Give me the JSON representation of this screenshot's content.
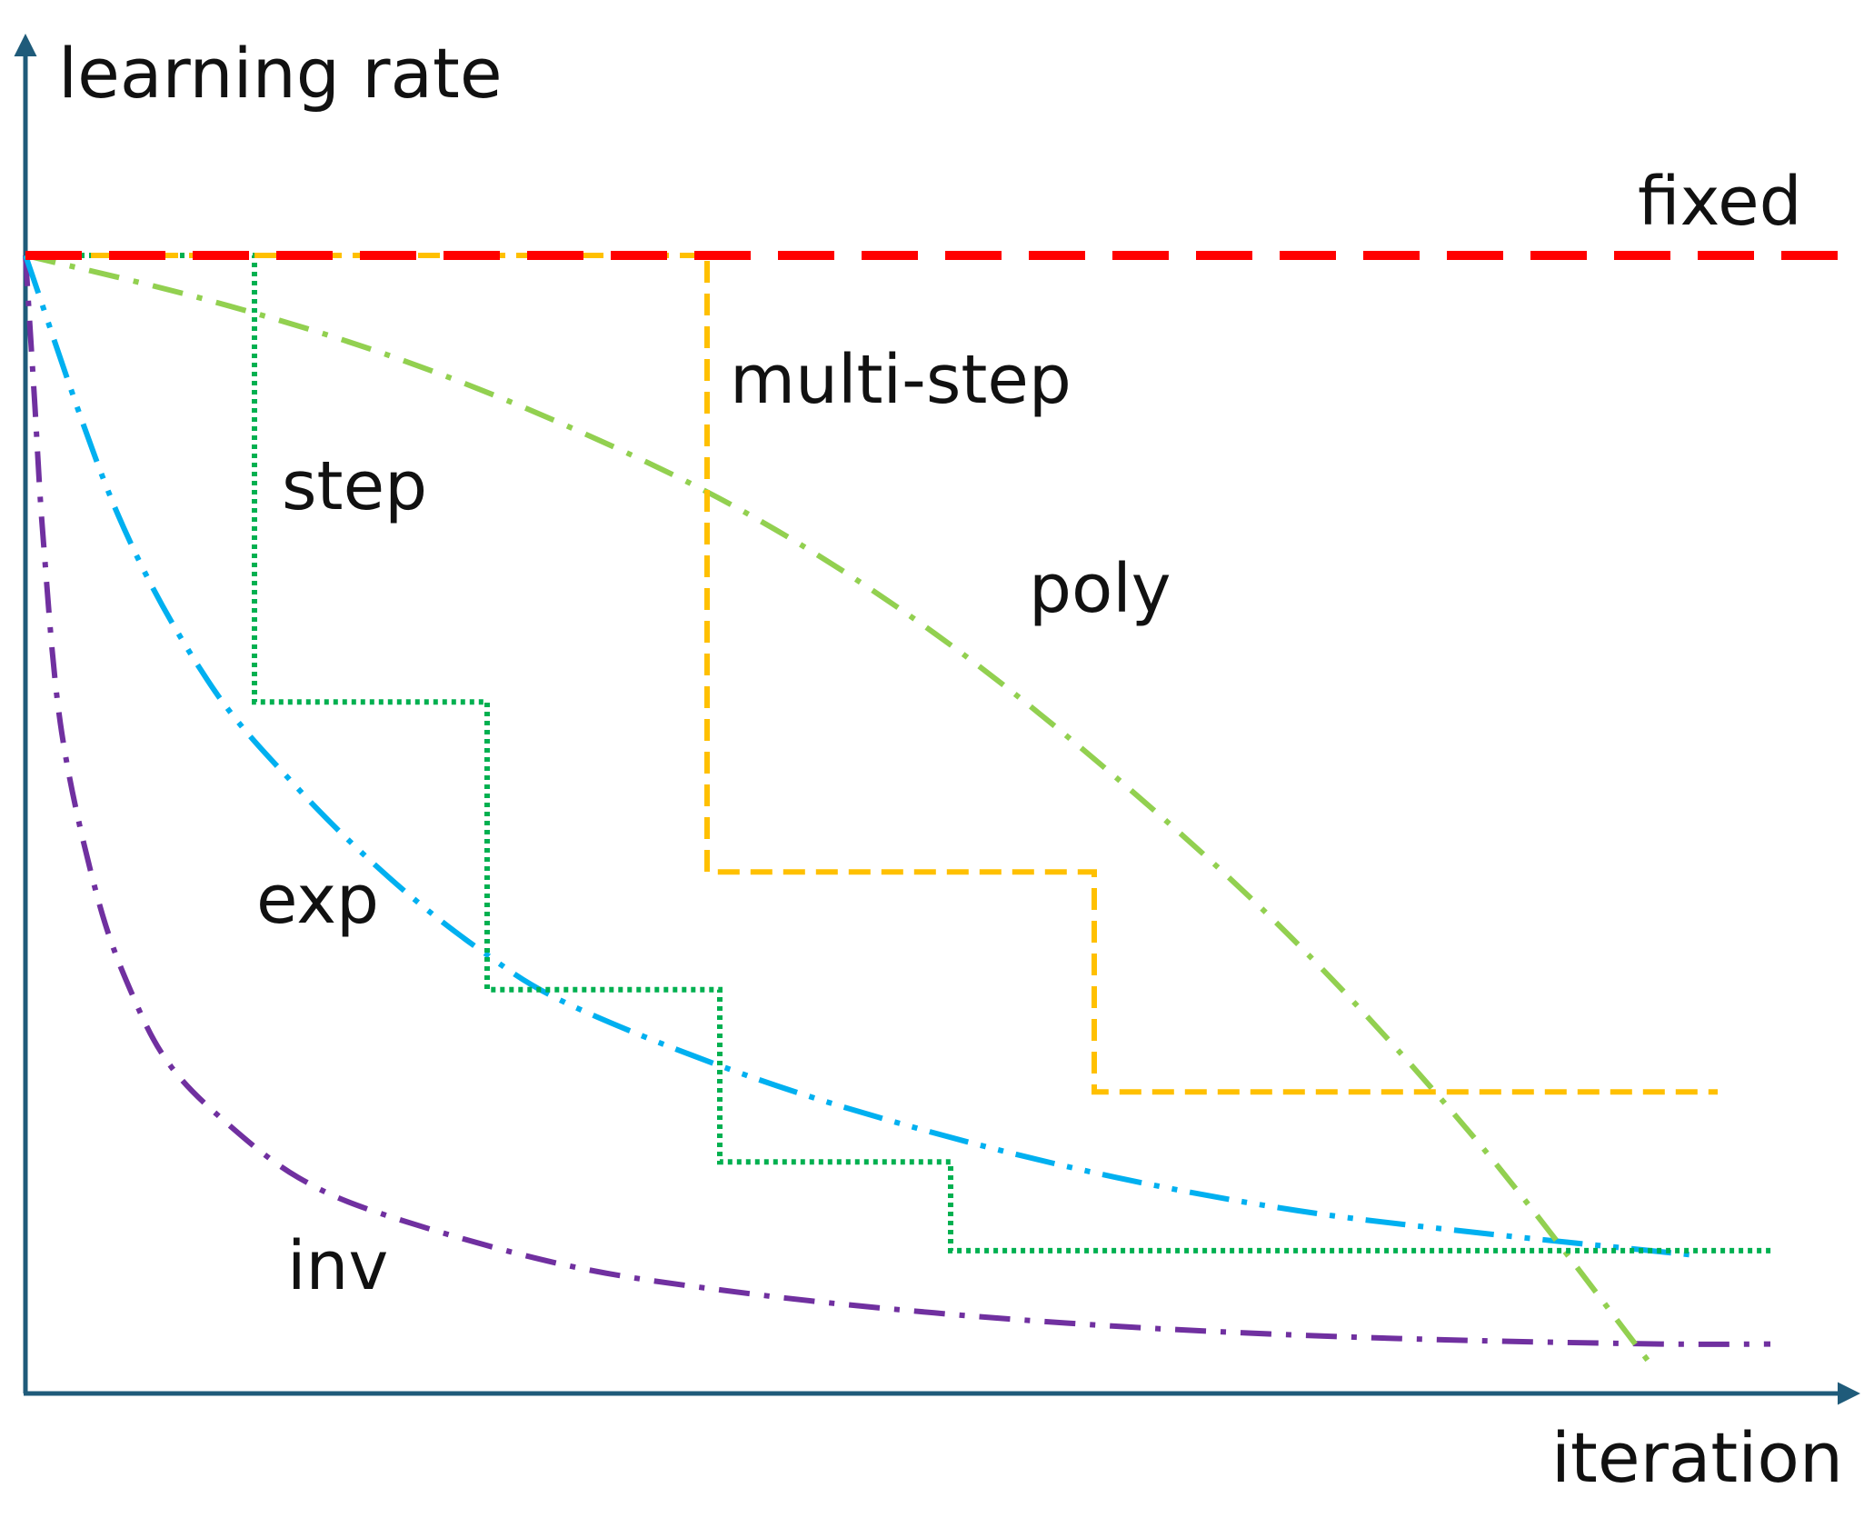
{
  "chart_data": {
    "type": "line",
    "xlabel": "iteration",
    "ylabel": "learning rate",
    "xlim": [
      0,
      100
    ],
    "ylim": [
      0,
      1.0
    ],
    "grid": false,
    "legend": "none",
    "colors": {
      "axis": "#1f5b7a",
      "fixed": "#ff0000",
      "multi_step": "#ffc000",
      "step": "#00b050",
      "poly": "#92d050",
      "exp": "#00b0f0",
      "inv": "#7030a0"
    },
    "series": [
      {
        "name": "fixed",
        "style": "long-dash",
        "x": [
          0,
          100
        ],
        "y": [
          1.0,
          1.0
        ]
      },
      {
        "name": "multi-step",
        "style": "dash",
        "x": [
          0,
          37.5,
          37.5,
          58.8,
          58.8,
          93.1
        ],
        "y": [
          1.0,
          1.0,
          0.445,
          0.445,
          0.247,
          0.247
        ]
      },
      {
        "name": "step",
        "style": "dot",
        "x": [
          0,
          12.6,
          12.6,
          25.4,
          25.4,
          38.2,
          38.2,
          50.9,
          50.9,
          96.2
        ],
        "y": [
          1.0,
          1.0,
          0.598,
          0.598,
          0.339,
          0.339,
          0.184,
          0.184,
          0.104,
          0.104
        ]
      },
      {
        "name": "poly",
        "style": "dash-dot",
        "x": [
          0,
          10,
          20,
          30,
          40,
          50,
          60,
          70,
          80,
          89.5
        ],
        "y": [
          1.0,
          0.96,
          0.91,
          0.845,
          0.765,
          0.66,
          0.53,
          0.38,
          0.2,
          0.0
        ]
      },
      {
        "name": "exp",
        "style": "dash-dot-dot",
        "x": [
          0,
          5,
          10,
          15,
          20,
          25,
          30,
          40,
          50,
          60,
          70,
          80,
          91.8
        ],
        "y": [
          1.0,
          0.77,
          0.618,
          0.52,
          0.44,
          0.375,
          0.325,
          0.26,
          0.21,
          0.17,
          0.14,
          0.12,
          0.1
        ]
      },
      {
        "name": "inv",
        "style": "dash-dot",
        "x": [
          0,
          0.5,
          1,
          2,
          4,
          6,
          8,
          11,
          15,
          20,
          30,
          40,
          50,
          60,
          70,
          80,
          90,
          96
        ],
        "y": [
          1.0,
          0.87,
          0.74,
          0.57,
          0.42,
          0.33,
          0.27,
          0.22,
          0.17,
          0.135,
          0.09,
          0.065,
          0.048,
          0.036,
          0.028,
          0.023,
          0.02,
          0.02
        ]
      }
    ]
  }
}
